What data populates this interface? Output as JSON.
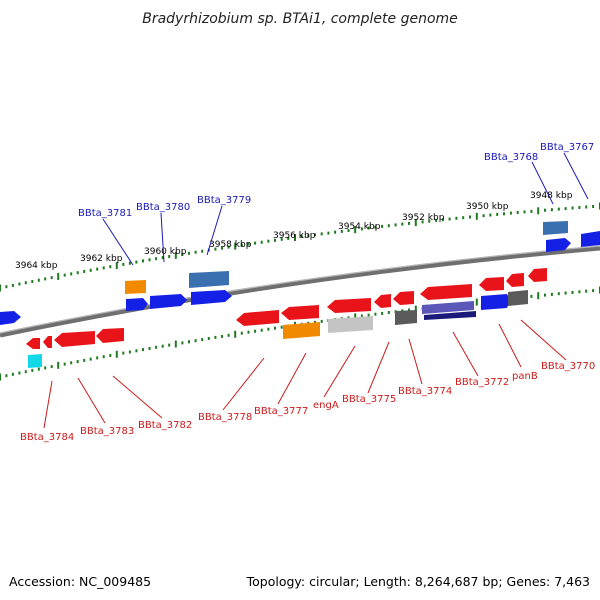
{
  "title": "Bradyrhizobium sp. BTAi1, complete genome",
  "footer": {
    "accession": "Accession: NC_009485",
    "summary": "Topology: circular; Length: 8,264,687 bp; Genes: 7,463"
  },
  "ticks": [
    "3964 kbp",
    "3962 kbp",
    "3960 kbp",
    "3958 kbp",
    "3956 kbp",
    "3954 kbp",
    "3952 kbp",
    "3950 kbp",
    "3948 kbp"
  ],
  "colors": {
    "backbone": "#7a7a7a",
    "tick": "#1f7a1f",
    "forward_label": "#1a1ab8",
    "reverse_label": "#cc1a1a",
    "red": "#e8141a",
    "blue": "#1420e6",
    "steelblue": "#3a6fb0",
    "orange": "#f28a00",
    "cyan": "#12d8e8",
    "grey": "#5a5a5a",
    "lightgrey": "#c4c4c4",
    "navy": "#1a1a7a",
    "purple": "#5b57b8"
  },
  "genes": {
    "forward": [
      "BBta_3781",
      "BBta_3780",
      "BBta_3779",
      "BBta_3768",
      "BBta_3767"
    ],
    "reverse": [
      "BBta_3784",
      "BBta_3783",
      "BBta_3782",
      "BBta_3778",
      "BBta_3777",
      "engA",
      "BBta_3775",
      "BBta_3774",
      "BBta_3772",
      "panB",
      "BBta_3770"
    ]
  }
}
